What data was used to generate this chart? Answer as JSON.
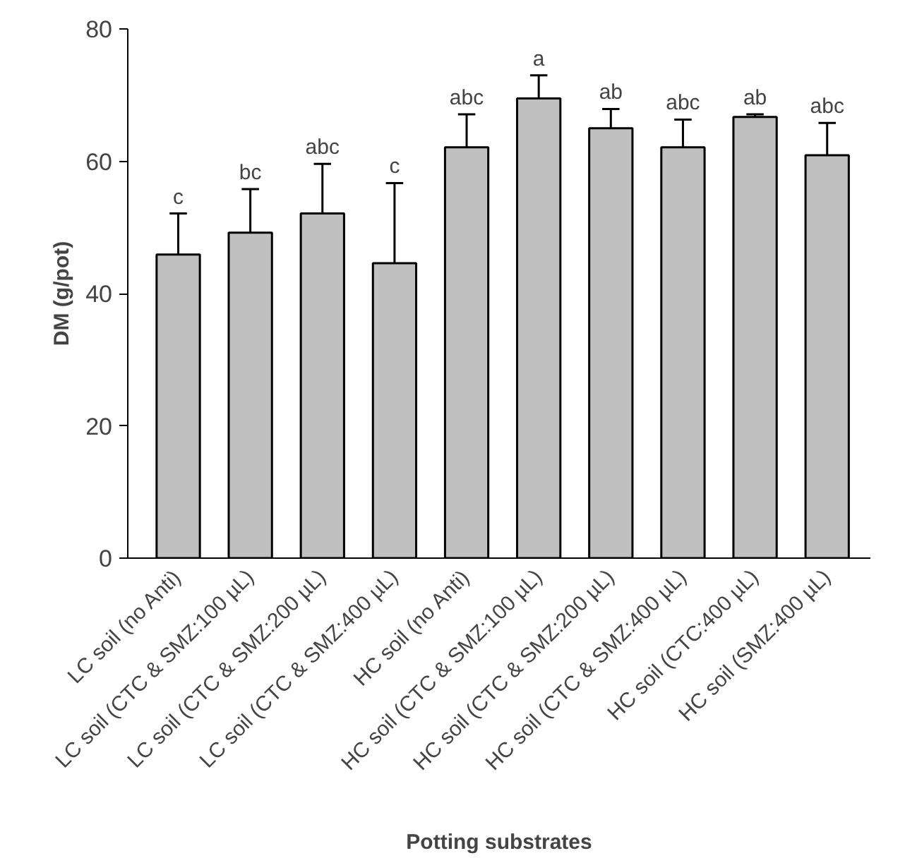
{
  "chart_data": {
    "type": "bar",
    "xlabel": "Potting substrates",
    "ylabel": "DM (g/pot)",
    "categories": [
      "LC soil (no Anti)",
      "LC soil (CTC & SMZ:100 µL)",
      "LC soil (CTC & SMZ:200 µL)",
      "LC soil (CTC & SMZ:400 µL)",
      "HC soil (no Anti)",
      "HC soil (CTC & SMZ:100 µL)",
      "HC soil (CTC & SMZ:200 µL)",
      "HC soil (CTC & SMZ:400 µL)",
      "HC soil (CTC:400 µL)",
      "HC soil (SMZ:400 µL)"
    ],
    "values": [
      45.9,
      49.2,
      52.1,
      44.6,
      62.1,
      69.5,
      65.0,
      62.1,
      66.7,
      60.9
    ],
    "errors": [
      6.2,
      6.6,
      7.5,
      12.1,
      5.0,
      3.5,
      2.9,
      4.2,
      0.4,
      4.9
    ],
    "color": "#c0c0c0",
    "ylim": [
      0,
      80
    ],
    "yticks": [
      0,
      20,
      40,
      60,
      80
    ],
    "grid": false,
    "annotations": [
      "c",
      "bc",
      "abc",
      "c",
      "abc",
      "a",
      "ab",
      "abc",
      "ab",
      "abc"
    ]
  }
}
